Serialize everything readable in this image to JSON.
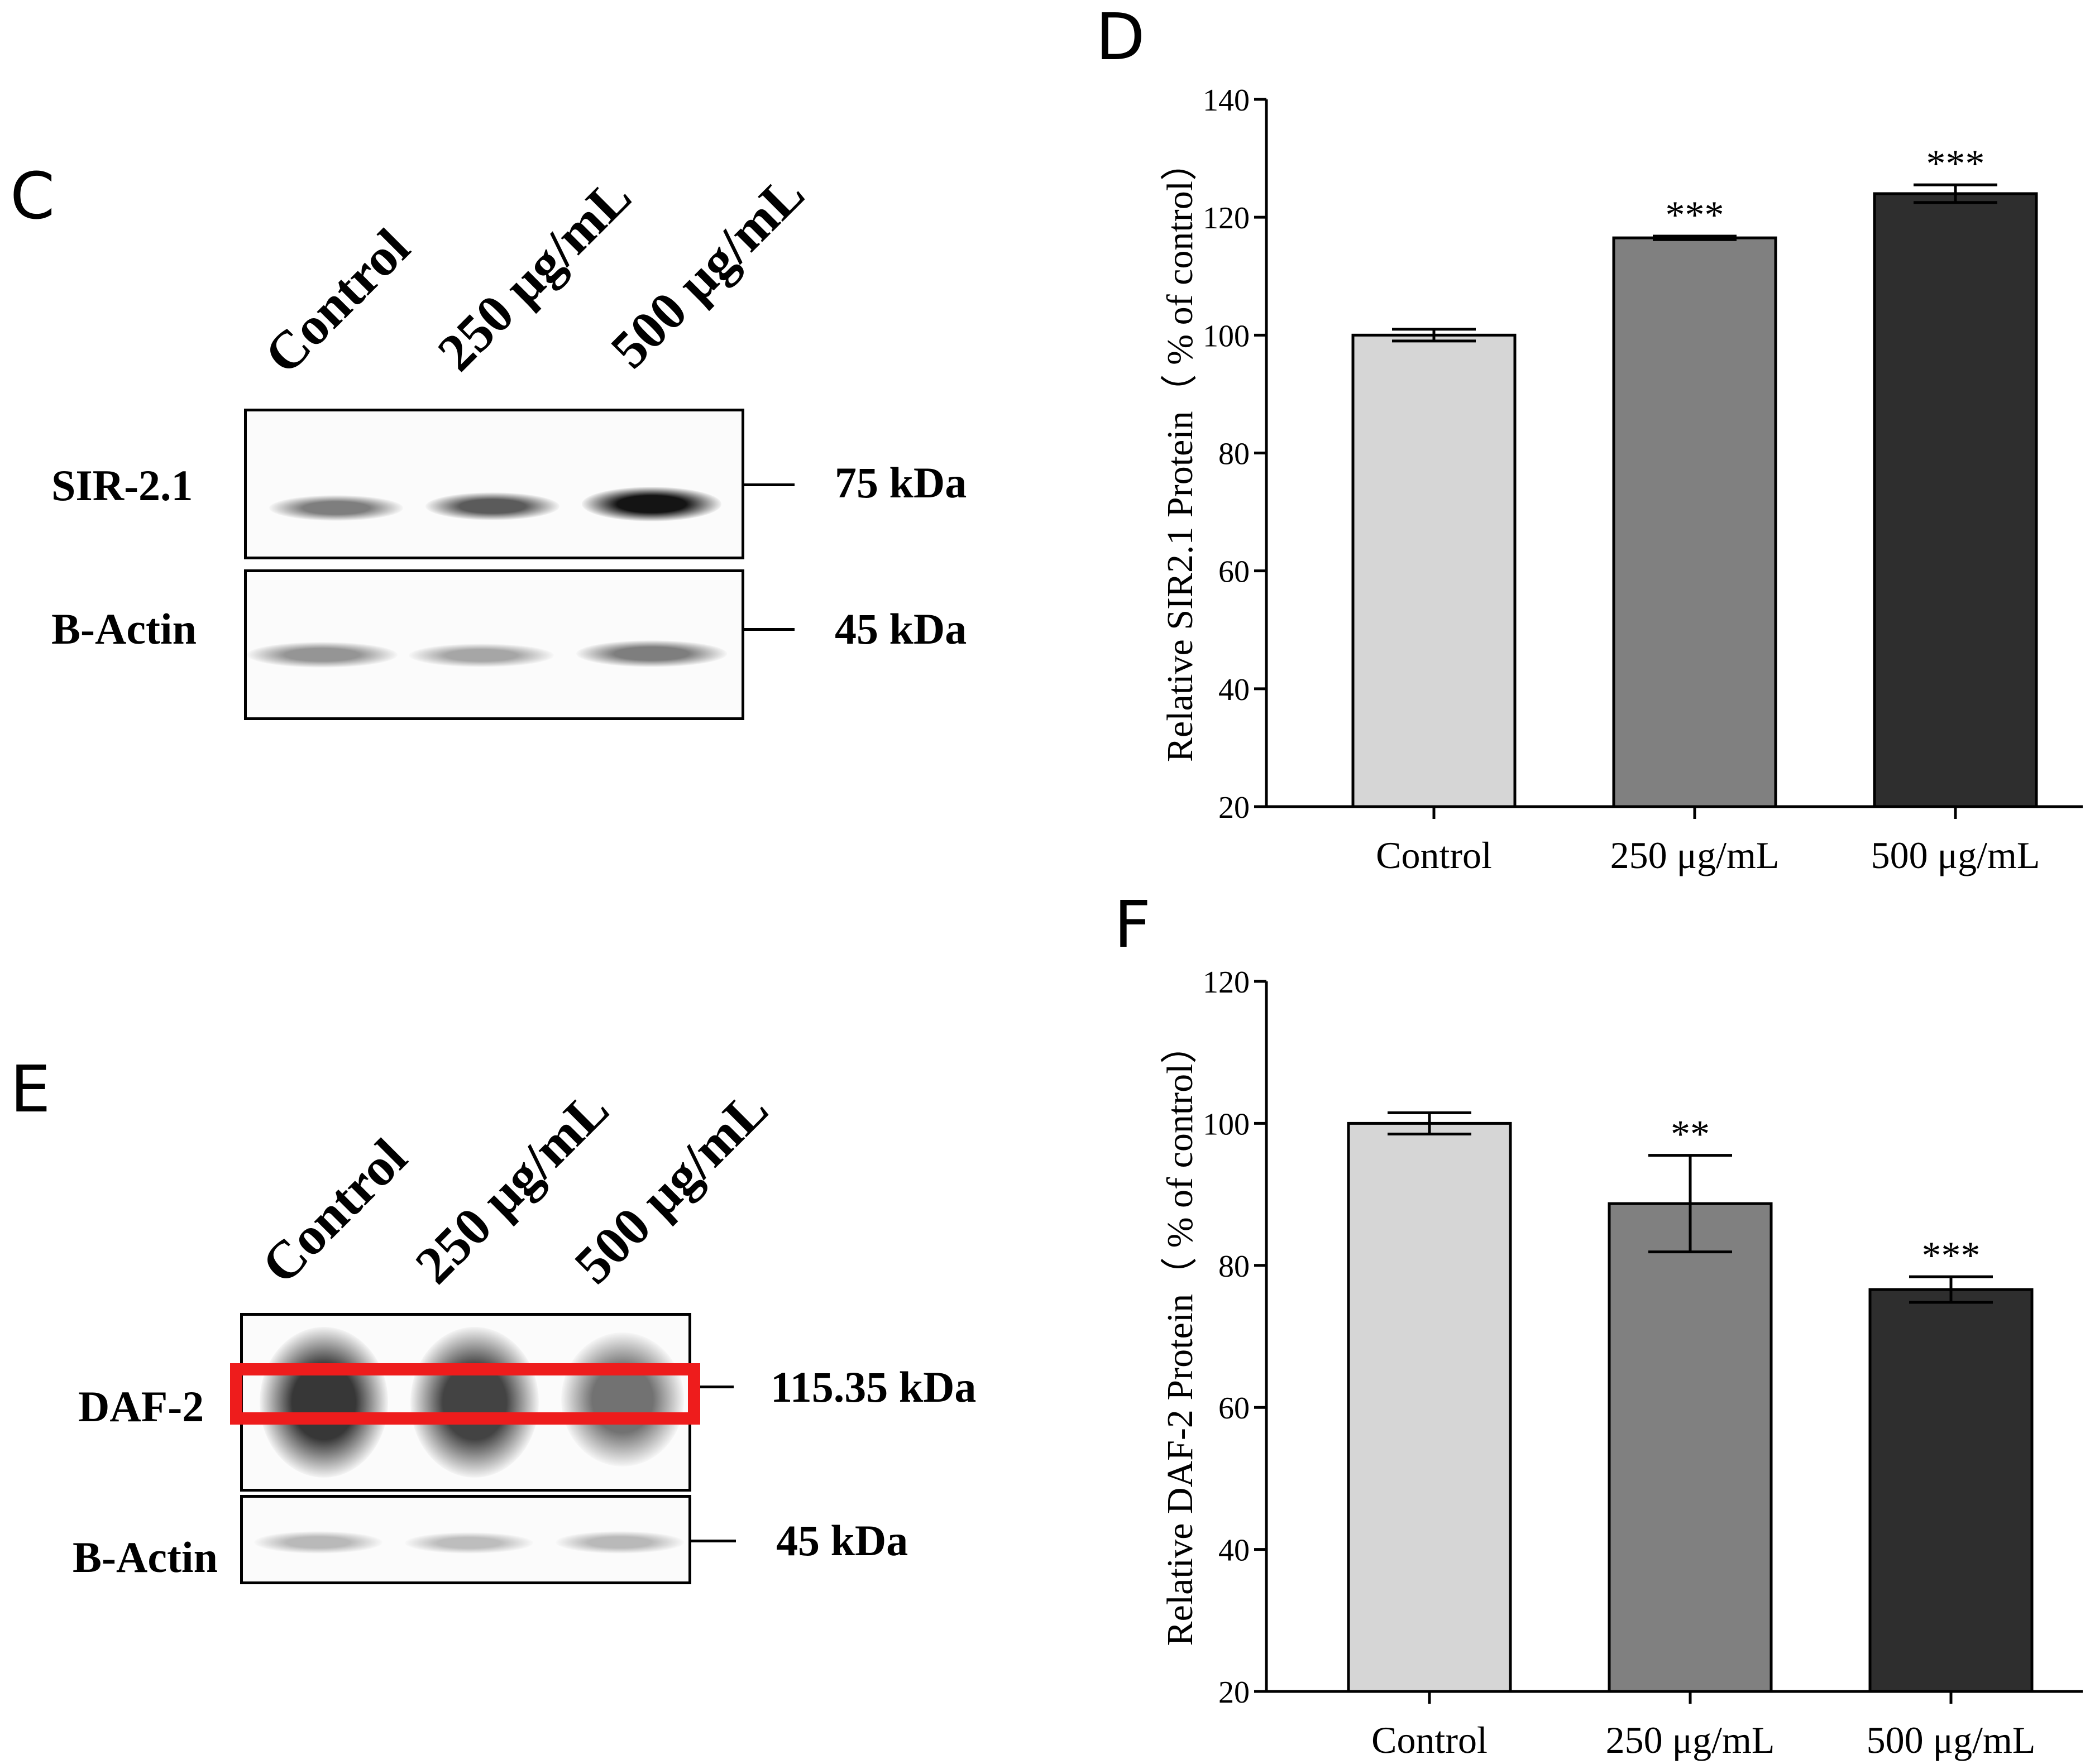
{
  "panels": {
    "C": {
      "letter": "C",
      "lanes": [
        "Control",
        "250 μg/mL",
        "500 μg/mL"
      ],
      "rows": [
        {
          "label": "SIR-2.1",
          "kda": "75 kDa",
          "band_intensity": [
            0.55,
            0.7,
            1.0
          ]
        },
        {
          "label": "B-Actin",
          "kda": "45 kDa",
          "band_intensity": [
            0.45,
            0.38,
            0.55
          ]
        }
      ]
    },
    "E": {
      "letter": "E",
      "lanes": [
        "Control",
        "250 μg/mL",
        "500 μg/mL"
      ],
      "rows": [
        {
          "label": "DAF-2",
          "kda": "115.35 kDa",
          "band_intensity": [
            0.85,
            0.8,
            0.6
          ]
        },
        {
          "label": "B-Actin",
          "kda": "45 kDa",
          "band_intensity": [
            0.3,
            0.28,
            0.3
          ]
        }
      ],
      "highlight_color": "#ee1c1c"
    }
  },
  "chart_data": [
    {
      "panel": "D",
      "type": "bar",
      "categories": [
        "Control",
        "250 μg/mL",
        "500 μg/mL"
      ],
      "values": [
        100,
        116.5,
        124
      ],
      "errors": [
        1,
        0.3,
        1.5
      ],
      "significance": [
        "",
        "***",
        "***"
      ],
      "bar_colors": [
        "#d6d6d6",
        "#808080",
        "#2e2e2e"
      ],
      "ylabel": "Relative SIR2.1 Protein（ % of control）",
      "ylim": [
        20,
        140
      ],
      "yticks": [
        "20",
        "40",
        "60",
        "80",
        "100",
        "120",
        "140"
      ]
    },
    {
      "panel": "F",
      "type": "bar",
      "categories": [
        "Control",
        "250 μg/mL",
        "500 μg/mL"
      ],
      "values": [
        100,
        88.7,
        76.6
      ],
      "errors": [
        1.5,
        6.8,
        1.8
      ],
      "significance": [
        "",
        "**",
        "***"
      ],
      "bar_colors": [
        "#d6d6d6",
        "#808080",
        "#2e2e2e"
      ],
      "ylabel": "Relative DAF-2 Protein（ % of control）",
      "ylim": [
        20,
        120
      ],
      "yticks": [
        "20",
        "40",
        "60",
        "80",
        "100",
        "120"
      ]
    }
  ]
}
